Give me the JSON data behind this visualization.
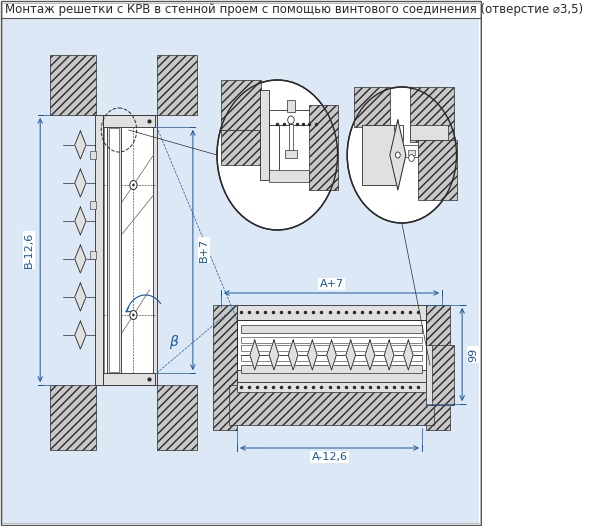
{
  "title": "Монтаж решетки с КРВ в стенной проем с помощью винтового соединения (отверстие ⌀3,5)",
  "bg_color": "#dce8f5",
  "white": "#ffffff",
  "line_color": "#2a2a2a",
  "blue_color": "#1558a0",
  "hatch_face": "#c8c8c8",
  "gray_face": "#e0e0e0",
  "title_fontsize": 8.5,
  "dim_fontsize": 8.0,
  "label_B126": "B-12,6",
  "label_B7": "B+7",
  "label_beta": "β",
  "label_A7": "A+7",
  "label_A126": "A-12,6",
  "label_99": "99"
}
